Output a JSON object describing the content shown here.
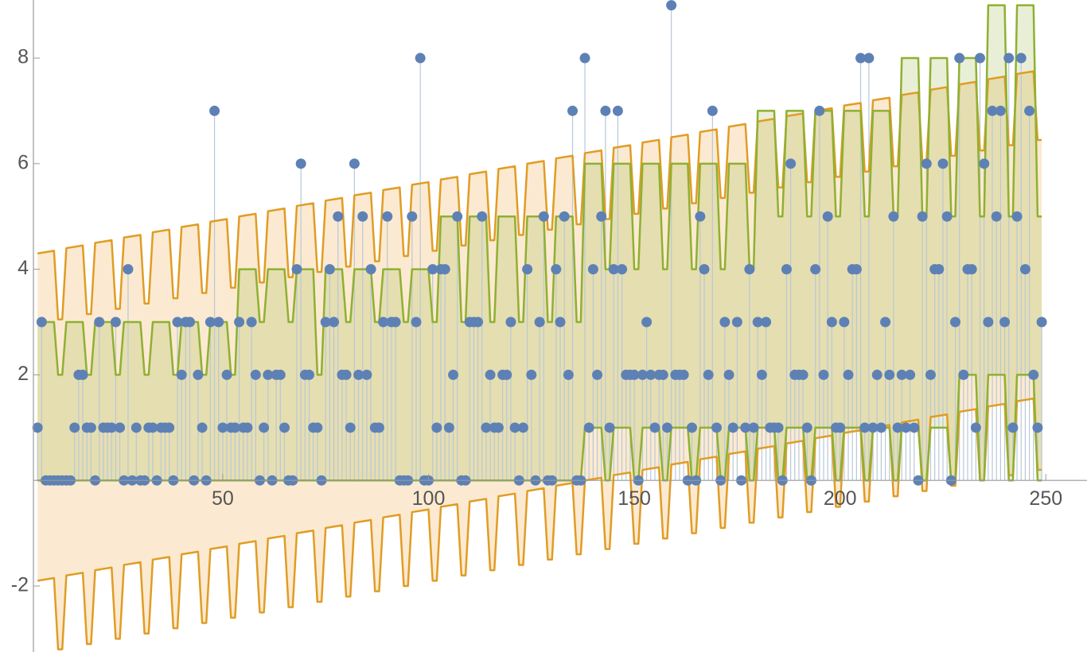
{
  "chart_data": {
    "type": "scatter",
    "xlim": [
      4,
      260
    ],
    "ylim": [
      -3.25,
      9.1
    ],
    "xticks": [
      50,
      100,
      150,
      200,
      250
    ],
    "yticks": [
      -2,
      2,
      4,
      6,
      8
    ],
    "points": {
      "color": "#5e81b5",
      "stem_color": "#b9c8d6",
      "x": [
        5,
        6,
        7,
        8,
        9,
        10,
        11,
        12,
        13,
        14,
        15,
        16,
        17,
        18,
        19,
        20,
        21,
        22,
        23,
        24,
        25,
        26,
        27,
        28,
        29,
        30,
        31,
        32,
        33,
        34,
        35,
        36,
        37,
        38,
        39,
        40,
        41,
        42,
        43,
        44,
        45,
        46,
        47,
        48,
        49,
        50,
        51,
        52,
        53,
        54,
        55,
        56,
        57,
        58,
        59,
        60,
        61,
        62,
        63,
        64,
        65,
        66,
        67,
        68,
        69,
        70,
        71,
        72,
        73,
        74,
        75,
        76,
        77,
        78,
        79,
        80,
        81,
        82,
        83,
        84,
        85,
        86,
        87,
        88,
        89,
        90,
        91,
        92,
        93,
        94,
        95,
        96,
        97,
        98,
        99,
        100,
        101,
        102,
        103,
        104,
        105,
        106,
        107,
        108,
        109,
        110,
        111,
        112,
        113,
        114,
        115,
        116,
        117,
        118,
        119,
        120,
        121,
        122,
        123,
        124,
        125,
        126,
        127,
        128,
        129,
        130,
        131,
        132,
        133,
        134,
        135,
        136,
        137,
        138,
        139,
        140,
        141,
        142,
        143,
        144,
        145,
        146,
        147,
        148,
        149,
        150,
        151,
        152,
        153,
        154,
        155,
        156,
        157,
        158,
        159,
        160,
        161,
        162,
        163,
        164,
        165,
        166,
        167,
        168,
        169,
        170,
        171,
        172,
        173,
        174,
        175,
        176,
        177,
        178,
        179,
        180,
        181,
        182,
        183,
        184,
        185,
        186,
        187,
        188,
        189,
        190,
        191,
        192,
        193,
        194,
        195,
        196,
        197,
        198,
        199,
        200,
        201,
        202,
        203,
        204,
        205,
        206,
        207,
        208,
        209,
        210,
        211,
        212,
        213,
        214,
        215,
        216,
        217,
        218,
        219,
        220,
        221,
        222,
        223,
        224,
        225,
        226,
        227,
        228,
        229,
        230,
        231,
        232,
        233,
        234,
        235,
        236,
        237,
        238,
        239,
        240,
        241,
        242,
        243,
        244,
        245,
        246,
        247,
        248,
        249
      ],
      "values": [
        1,
        3,
        0,
        0,
        0,
        0,
        0,
        0,
        0,
        1,
        2,
        2,
        1,
        1,
        0,
        3,
        1,
        1,
        1,
        3,
        1,
        0,
        4,
        0,
        1,
        0,
        0,
        1,
        1,
        0,
        1,
        1,
        1,
        0,
        3,
        2,
        3,
        3,
        0,
        2,
        1,
        0,
        3,
        7,
        3,
        1,
        2,
        1,
        1,
        3,
        1,
        1,
        3,
        2,
        0,
        1,
        2,
        0,
        2,
        2,
        1,
        0,
        0,
        4,
        6,
        2,
        2,
        1,
        1,
        0,
        3,
        4,
        3,
        5,
        2,
        2,
        1,
        6,
        2,
        5,
        2,
        4,
        1,
        1,
        3,
        5,
        3,
        3,
        0,
        0,
        0,
        5,
        3,
        8,
        0,
        0,
        4,
        1,
        4,
        4,
        1,
        2,
        5,
        0,
        0,
        3,
        3,
        3,
        5,
        1,
        2,
        1,
        1,
        2,
        2,
        3,
        1,
        0,
        1,
        4,
        2,
        0,
        3,
        5,
        0,
        0,
        4,
        3,
        5,
        2,
        7,
        0,
        0,
        8,
        1,
        4,
        2,
        5,
        7,
        1,
        4,
        7,
        4,
        2,
        2,
        2,
        0,
        2,
        3,
        2,
        1,
        2,
        2,
        1,
        9,
        2,
        2,
        2,
        0,
        1,
        0,
        5,
        4,
        2,
        7,
        1,
        0,
        3,
        2,
        1,
        3,
        0,
        1,
        4,
        1,
        3,
        2,
        3,
        1,
        1,
        1,
        0,
        4,
        6,
        2,
        2,
        2,
        1,
        0,
        4,
        7,
        2,
        5,
        3,
        1,
        1,
        3,
        2,
        4,
        4,
        8,
        1,
        8,
        1,
        2,
        1,
        3,
        2,
        5,
        1,
        2,
        1,
        2,
        1,
        0,
        5,
        6,
        2,
        4,
        4,
        6,
        5,
        0,
        3,
        8,
        2,
        4,
        4,
        1,
        8,
        6,
        3,
        7,
        5,
        7,
        3,
        8,
        1,
        5,
        8,
        4,
        7,
        2,
        1,
        3
      ]
    },
    "band_x": [
      5,
      9,
      10,
      11,
      12,
      16,
      17,
      18,
      19,
      23,
      24,
      25,
      26,
      30,
      31,
      32,
      33,
      37,
      38,
      39,
      40,
      44,
      45,
      46,
      47,
      51,
      52,
      53,
      54,
      58,
      59,
      60,
      61,
      65,
      66,
      67,
      68,
      72,
      73,
      74,
      75,
      79,
      80,
      81,
      82,
      86,
      87,
      88,
      89,
      93,
      94,
      95,
      96,
      100,
      101,
      102,
      103,
      107,
      108,
      109,
      110,
      114,
      115,
      116,
      117,
      121,
      122,
      123,
      124,
      128,
      129,
      130,
      131,
      135,
      136,
      137,
      138,
      142,
      143,
      144,
      145,
      149,
      150,
      151,
      152,
      156,
      157,
      158,
      159,
      163,
      164,
      165,
      166,
      170,
      171,
      172,
      173,
      177,
      178,
      179,
      180,
      184,
      185,
      186,
      187,
      191,
      192,
      193,
      194,
      198,
      199,
      200,
      201,
      205,
      206,
      207,
      208,
      212,
      213,
      214,
      215,
      219,
      220,
      221,
      222,
      226,
      227,
      228,
      229,
      233,
      234,
      235,
      236,
      240,
      241,
      242,
      243,
      247,
      248,
      249
    ],
    "bands": [
      {
        "color": "#e19c24",
        "fill": "rgba(240,180,90,0.28)",
        "upper": [
          4.3,
          4.35,
          3.05,
          3.05,
          4.4,
          4.45,
          3.15,
          3.15,
          4.5,
          4.55,
          3.25,
          3.25,
          4.6,
          4.65,
          3.35,
          3.35,
          4.7,
          4.75,
          3.45,
          3.45,
          4.8,
          4.85,
          3.55,
          3.55,
          4.9,
          4.95,
          3.65,
          3.65,
          5,
          5.05,
          3.75,
          3.75,
          5.1,
          5.15,
          3.85,
          3.85,
          5.2,
          5.25,
          3.95,
          3.95,
          5.3,
          5.35,
          4.05,
          4.05,
          5.4,
          5.45,
          4.15,
          4.15,
          5.5,
          5.55,
          4.25,
          4.25,
          5.6,
          5.65,
          4.35,
          4.35,
          5.7,
          5.75,
          4.45,
          4.45,
          5.8,
          5.85,
          4.55,
          4.55,
          5.9,
          5.95,
          4.65,
          4.65,
          6,
          6.05,
          4.75,
          4.75,
          6.1,
          6.15,
          4.85,
          4.85,
          6.2,
          6.25,
          4.95,
          4.95,
          6.3,
          6.35,
          5.05,
          5.05,
          6.4,
          6.45,
          5.15,
          5.15,
          6.5,
          6.55,
          5.25,
          5.25,
          6.6,
          6.65,
          5.35,
          5.35,
          6.7,
          6.75,
          5.45,
          5.45,
          6.8,
          6.85,
          5.55,
          5.55,
          6.9,
          6.95,
          5.65,
          5.65,
          7,
          7.05,
          5.75,
          5.75,
          7.1,
          7.15,
          5.85,
          5.85,
          7.2,
          7.25,
          5.95,
          5.95,
          7.3,
          7.35,
          6.05,
          6.05,
          7.4,
          7.45,
          6.15,
          6.15,
          7.5,
          7.55,
          6.25,
          6.25,
          7.6,
          7.65,
          6.35,
          6.35,
          7.7,
          7.75,
          6.45,
          6.45
        ],
        "lower": [
          -1.9,
          -1.85,
          -3.2,
          -3.2,
          -1.8,
          -1.75,
          -3.1,
          -3.1,
          -1.7,
          -1.65,
          -3,
          -3,
          -1.6,
          -1.55,
          -2.9,
          -2.9,
          -1.5,
          -1.45,
          -2.8,
          -2.8,
          -1.4,
          -1.35,
          -2.7,
          -2.7,
          -1.3,
          -1.25,
          -2.6,
          -2.6,
          -1.2,
          -1.15,
          -2.5,
          -2.5,
          -1.1,
          -1.05,
          -2.4,
          -2.4,
          -1,
          -0.95,
          -2.3,
          -2.3,
          -0.9,
          -0.85,
          -2.2,
          -2.2,
          -0.8,
          -0.75,
          -2.1,
          -2.1,
          -0.7,
          -0.65,
          -2,
          -2,
          -0.6,
          -0.55,
          -1.9,
          -1.9,
          -0.5,
          -0.45,
          -1.8,
          -1.8,
          -0.4,
          -0.35,
          -1.7,
          -1.7,
          -0.3,
          -0.25,
          -1.6,
          -1.6,
          -0.2,
          -0.15,
          -1.5,
          -1.5,
          -0.1,
          -0.05,
          -1.4,
          -1.4,
          0,
          0.05,
          -1.3,
          -1.3,
          0.1,
          0.15,
          -1.2,
          -1.2,
          0.2,
          0.25,
          -1.1,
          -1.1,
          0.3,
          0.35,
          -1,
          -1,
          0.4,
          0.45,
          -0.9,
          -0.9,
          0.5,
          0.55,
          -0.8,
          -0.8,
          0.6,
          0.65,
          -0.7,
          -0.7,
          0.7,
          0.75,
          -0.6,
          -0.6,
          0.8,
          0.85,
          -0.5,
          -0.5,
          0.9,
          0.95,
          -0.4,
          -0.4,
          1,
          1.05,
          -0.3,
          -0.3,
          1.1,
          1.15,
          -0.2,
          -0.2,
          1.2,
          1.25,
          -0.1,
          -0.1,
          1.3,
          1.35,
          0,
          0,
          1.4,
          1.45,
          0.1,
          0.1,
          1.5,
          1.55,
          0.2,
          0.2
        ]
      },
      {
        "color": "#8fb032",
        "fill": "rgba(143,176,50,0.2)",
        "upper": [
          3,
          3,
          2,
          2,
          3,
          3,
          2,
          2,
          3,
          3,
          2,
          2,
          3,
          3,
          2,
          2,
          3,
          3,
          2,
          2,
          3,
          3,
          2,
          2,
          3,
          3,
          2,
          2,
          4,
          4,
          3,
          3,
          4,
          4,
          3,
          3,
          4,
          4,
          2,
          2,
          4,
          4,
          3,
          3,
          4,
          4,
          3,
          3,
          4,
          4,
          3,
          3,
          4,
          4,
          3,
          3,
          5,
          5,
          3,
          3,
          5,
          5,
          3,
          3,
          5,
          5,
          3,
          3,
          5,
          5,
          3,
          3,
          5,
          5,
          3,
          3,
          6,
          6,
          4,
          4,
          6,
          6,
          4,
          4,
          6,
          6,
          4,
          4,
          6,
          6,
          4,
          4,
          6,
          6,
          4,
          4,
          6,
          6,
          4,
          4,
          7,
          7,
          5,
          5,
          7,
          7,
          5,
          5,
          7,
          7,
          5,
          5,
          7,
          7,
          5,
          5,
          7,
          7,
          5,
          5,
          8,
          8,
          5,
          5,
          8,
          8,
          5,
          5,
          8,
          8,
          5,
          5,
          9,
          9,
          5,
          5,
          9,
          9,
          5,
          5
        ],
        "lower": [
          0,
          0,
          0,
          0,
          0,
          0,
          0,
          0,
          0,
          0,
          0,
          0,
          0,
          0,
          0,
          0,
          0,
          0,
          0,
          0,
          0,
          0,
          0,
          0,
          0,
          0,
          0,
          0,
          0,
          0,
          0,
          0,
          0,
          0,
          0,
          0,
          0,
          0,
          0,
          0,
          0,
          0,
          0,
          0,
          0,
          0,
          0,
          0,
          0,
          0,
          0,
          0,
          0,
          0,
          0,
          0,
          0,
          0,
          0,
          0,
          0,
          0,
          0,
          0,
          0,
          0,
          0,
          0,
          0,
          0,
          0,
          0,
          0,
          0,
          0,
          0,
          1,
          1,
          0,
          0,
          1,
          1,
          0,
          0,
          1,
          1,
          0,
          0,
          1,
          1,
          0,
          0,
          1,
          1,
          0,
          0,
          1,
          1,
          0,
          0,
          1,
          1,
          0,
          0,
          1,
          1,
          0,
          0,
          1,
          1,
          0,
          0,
          1,
          1,
          0,
          0,
          1,
          1,
          0,
          0,
          1,
          1,
          0,
          0,
          1,
          1,
          0,
          0,
          2,
          2,
          0,
          0,
          2,
          2,
          0,
          0,
          2,
          2,
          0,
          0
        ]
      }
    ]
  }
}
